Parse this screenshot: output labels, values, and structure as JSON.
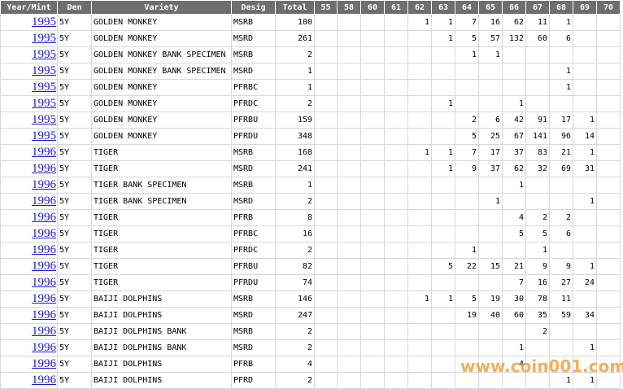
{
  "table": {
    "columns": [
      "Year/Mint",
      "Den",
      "Variety",
      "Desig",
      "Total",
      "55",
      "58",
      "60",
      "61",
      "62",
      "63",
      "64",
      "65",
      "66",
      "67",
      "68",
      "69",
      "70"
    ],
    "rows": [
      [
        "1995",
        "5Y",
        "GOLDEN MONKEY",
        "MSRB",
        100,
        null,
        null,
        null,
        null,
        1,
        1,
        7,
        16,
        62,
        11,
        1,
        null,
        null
      ],
      [
        "1995",
        "5Y",
        "GOLDEN MONKEY",
        "MSRD",
        261,
        null,
        null,
        null,
        null,
        null,
        1,
        5,
        57,
        132,
        60,
        6,
        null,
        null
      ],
      [
        "1995",
        "5Y",
        "GOLDEN MONKEY BANK SPECIMEN",
        "MSRB",
        2,
        null,
        null,
        null,
        null,
        null,
        null,
        1,
        1,
        null,
        null,
        null,
        null,
        null
      ],
      [
        "1995",
        "5Y",
        "GOLDEN MONKEY BANK SPECIMEN",
        "MSRD",
        1,
        null,
        null,
        null,
        null,
        null,
        null,
        null,
        null,
        null,
        null,
        1,
        null,
        null
      ],
      [
        "1995",
        "5Y",
        "GOLDEN MONKEY",
        "PFRBC",
        1,
        null,
        null,
        null,
        null,
        null,
        null,
        null,
        null,
        null,
        null,
        1,
        null,
        null
      ],
      [
        "1995",
        "5Y",
        "GOLDEN MONKEY",
        "PFRDC",
        2,
        null,
        null,
        null,
        null,
        null,
        1,
        null,
        null,
        1,
        null,
        null,
        null,
        null
      ],
      [
        "1995",
        "5Y",
        "GOLDEN MONKEY",
        "PFRBU",
        159,
        null,
        null,
        null,
        null,
        null,
        null,
        2,
        6,
        42,
        91,
        17,
        1,
        null
      ],
      [
        "1995",
        "5Y",
        "GOLDEN MONKEY",
        "PFRDU",
        348,
        null,
        null,
        null,
        null,
        null,
        null,
        5,
        25,
        67,
        141,
        96,
        14,
        null
      ],
      [
        "1996",
        "5Y",
        "TIGER",
        "MSRB",
        168,
        null,
        null,
        null,
        null,
        1,
        1,
        7,
        17,
        37,
        83,
        21,
        1,
        null
      ],
      [
        "1996",
        "5Y",
        "TIGER",
        "MSRD",
        241,
        null,
        null,
        null,
        null,
        null,
        1,
        9,
        37,
        62,
        32,
        69,
        31,
        null
      ],
      [
        "1996",
        "5Y",
        "TIGER BANK SPECIMEN",
        "MSRB",
        1,
        null,
        null,
        null,
        null,
        null,
        null,
        null,
        null,
        1,
        null,
        null,
        null,
        null
      ],
      [
        "1996",
        "5Y",
        "TIGER BANK SPECIMEN",
        "MSRD",
        2,
        null,
        null,
        null,
        null,
        null,
        null,
        null,
        1,
        null,
        null,
        null,
        1,
        null
      ],
      [
        "1996",
        "5Y",
        "TIGER",
        "PFRB",
        8,
        null,
        null,
        null,
        null,
        null,
        null,
        null,
        null,
        4,
        2,
        2,
        null,
        null
      ],
      [
        "1996",
        "5Y",
        "TIGER",
        "PFRBC",
        16,
        null,
        null,
        null,
        null,
        null,
        null,
        null,
        null,
        5,
        5,
        6,
        null,
        null
      ],
      [
        "1996",
        "5Y",
        "TIGER",
        "PFRDC",
        2,
        null,
        null,
        null,
        null,
        null,
        null,
        1,
        null,
        null,
        1,
        null,
        null,
        null
      ],
      [
        "1996",
        "5Y",
        "TIGER",
        "PFRBU",
        82,
        null,
        null,
        null,
        null,
        null,
        5,
        22,
        15,
        21,
        9,
        9,
        1,
        null
      ],
      [
        "1996",
        "5Y",
        "TIGER",
        "PFRDU",
        74,
        null,
        null,
        null,
        null,
        null,
        null,
        null,
        null,
        7,
        16,
        27,
        24,
        null
      ],
      [
        "1996",
        "5Y",
        "BAIJI DOLPHINS",
        "MSRB",
        146,
        null,
        null,
        null,
        null,
        1,
        1,
        5,
        19,
        30,
        78,
        11,
        null,
        null
      ],
      [
        "1996",
        "5Y",
        "BAIJI DOLPHINS",
        "MSRD",
        247,
        null,
        null,
        null,
        null,
        null,
        null,
        19,
        40,
        60,
        35,
        59,
        34,
        null
      ],
      [
        "1996",
        "5Y",
        "BAIJI DOLPHINS BANK",
        "MSRB",
        2,
        null,
        null,
        null,
        null,
        null,
        null,
        null,
        null,
        null,
        2,
        null,
        null,
        null
      ],
      [
        "1996",
        "5Y",
        "BAIJI DOLPHINS BANK",
        "MSRD",
        2,
        null,
        null,
        null,
        null,
        null,
        null,
        null,
        null,
        1,
        null,
        null,
        1,
        null
      ],
      [
        "1996",
        "5Y",
        "BAIJI DOLPHINS",
        "PFRB",
        4,
        null,
        null,
        null,
        null,
        null,
        null,
        null,
        null,
        4,
        null,
        null,
        null,
        null
      ],
      [
        "1996",
        "5Y",
        "BAIJI DOLPHINS",
        "PFRD",
        2,
        null,
        null,
        null,
        null,
        null,
        null,
        null,
        null,
        null,
        null,
        1,
        1,
        null
      ]
    ]
  },
  "watermark": "www.coin001.com"
}
